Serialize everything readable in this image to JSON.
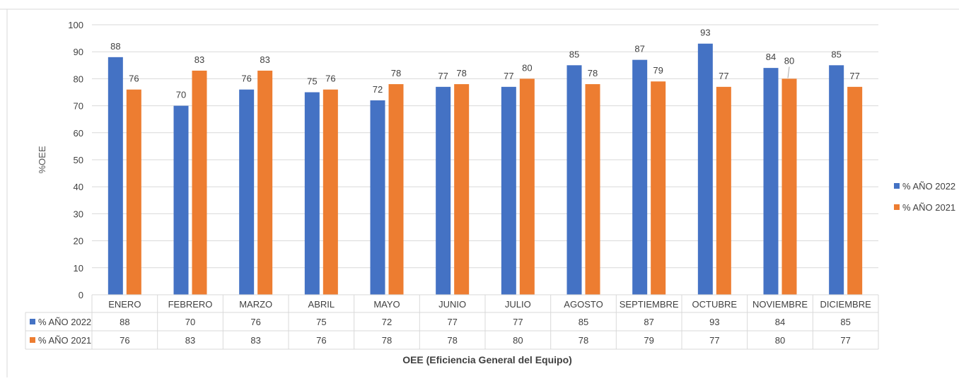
{
  "chart_data": {
    "type": "bar",
    "categories": [
      "ENERO",
      "FEBRERO",
      "MARZO",
      "ABRIL",
      "MAYO",
      "JUNIO",
      "JULIO",
      "AGOSTO",
      "SEPTIEMBRE",
      "OCTUBRE",
      "NOVIEMBRE",
      "DICIEMBRE"
    ],
    "series": [
      {
        "name": "% AÑO 2022",
        "color": "#4472C4",
        "values": [
          88,
          70,
          76,
          75,
          72,
          77,
          77,
          85,
          87,
          93,
          84,
          85
        ]
      },
      {
        "name": "% AÑO 2021",
        "color": "#ED7D31",
        "values": [
          76,
          83,
          83,
          76,
          78,
          78,
          80,
          78,
          79,
          77,
          80,
          77
        ]
      }
    ],
    "ylabel": "%OEE",
    "xlabel": "OEE (Eficiencia General del Equipo)",
    "ylim": [
      0,
      100
    ],
    "yticks": [
      0,
      10,
      20,
      30,
      40,
      50,
      60,
      70,
      80,
      90,
      100
    ],
    "grid": true,
    "legend": "right",
    "data_table": true
  }
}
